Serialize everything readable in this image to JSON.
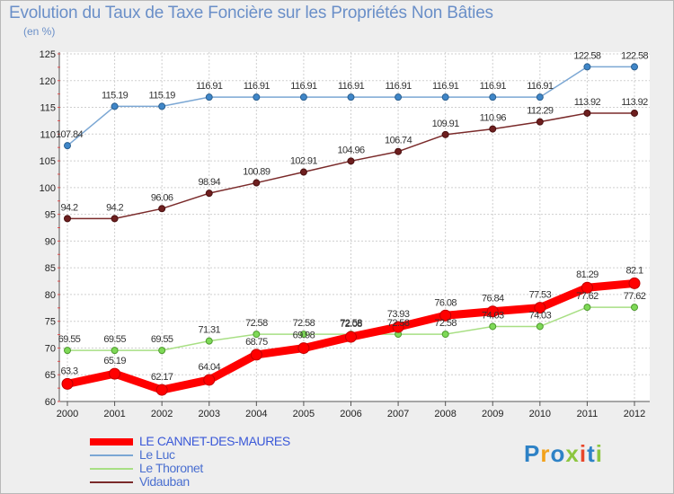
{
  "title": "Evolution du Taux de Taxe Foncière sur les Propriétés Non Bâties",
  "unit_label": "(en %)",
  "logo": {
    "text": "Proxiti",
    "letters": [
      {
        "ch": "P",
        "color": "#2e82c6"
      },
      {
        "ch": "r",
        "color": "#f2a21b"
      },
      {
        "ch": "o",
        "color": "#2e82c6"
      },
      {
        "ch": "x",
        "color": "#8cc63f"
      },
      {
        "ch": "i",
        "color": "#e8462a"
      },
      {
        "ch": "t",
        "color": "#2e82c6"
      },
      {
        "ch": "i",
        "color": "#8cc63f"
      }
    ]
  },
  "chart_data": {
    "type": "line",
    "title": "Evolution du Taux de Taxe Foncière sur les Propriétés Non Bâties",
    "ylabel": "(en %)",
    "xlabel": "",
    "ylim": [
      60,
      125
    ],
    "yticks": [
      60,
      65,
      70,
      75,
      80,
      85,
      90,
      95,
      100,
      105,
      110,
      115,
      120,
      125
    ],
    "grid": true,
    "legend_placement": "bottom-left",
    "categories": [
      "2000",
      "2001",
      "2002",
      "2003",
      "2004",
      "2005",
      "2006",
      "2007",
      "2008",
      "2009",
      "2010",
      "2011",
      "2012"
    ],
    "series": [
      {
        "name": "LE CANNET-DES-MAURES",
        "color": "#ff0000",
        "values": [
          63.3,
          65.19,
          62.17,
          64.04,
          68.75,
          69.98,
          72.08,
          73.93,
          76.08,
          76.84,
          77.53,
          81.29,
          82.1
        ],
        "labels": [
          "63.3",
          "65.19",
          "62.17",
          "64.04",
          "68.75",
          "69.98",
          "72.08",
          "73.93",
          "76.08",
          "76.84",
          "77.53",
          "81.29",
          "82.1"
        ]
      },
      {
        "name": "Le Luc",
        "color": "#7ba7d4",
        "values": [
          107.84,
          115.19,
          115.19,
          116.91,
          116.91,
          116.91,
          116.91,
          116.91,
          116.91,
          116.91,
          116.91,
          122.58,
          122.58
        ],
        "labels": [
          "107.84",
          "115.19",
          "115.19",
          "116.91",
          "116.91",
          "116.91",
          "116.91",
          "116.91",
          "116.91",
          "116.91",
          "116.91",
          "122.58",
          "122.58"
        ]
      },
      {
        "name": "Le Thoronet",
        "color": "#a8df84",
        "values": [
          69.55,
          69.55,
          69.55,
          71.31,
          72.58,
          72.58,
          72.58,
          72.58,
          72.58,
          74.03,
          74.03,
          77.62,
          77.62
        ],
        "labels": [
          "69.55",
          "69.55",
          "69.55",
          "71.31",
          "72.58",
          "72.58",
          "72.58",
          "72.58",
          "72.58",
          "74.03",
          "74.03",
          "77.62",
          "77.62"
        ]
      },
      {
        "name": "Vidauban",
        "color": "#7a2a2a",
        "values": [
          94.2,
          94.2,
          96.06,
          98.94,
          100.89,
          102.91,
          104.96,
          106.74,
          109.91,
          110.96,
          112.29,
          113.92,
          113.92
        ],
        "labels": [
          "94.2",
          "94.2",
          "96.06",
          "98.94",
          "100.89",
          "102.91",
          "104.96",
          "106.74",
          "109.91",
          "110.96",
          "112.29",
          "113.92",
          "113.92"
        ]
      }
    ]
  }
}
